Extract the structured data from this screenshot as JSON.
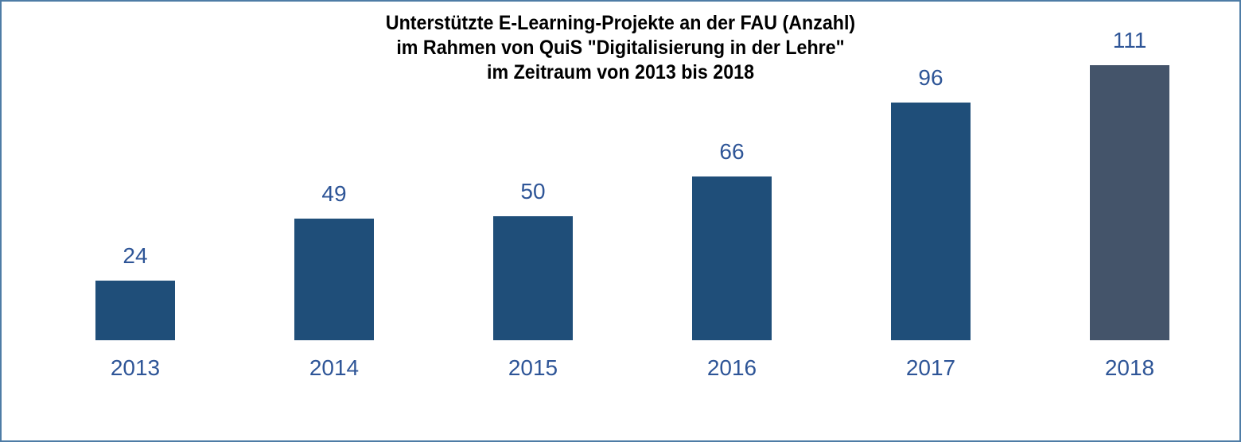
{
  "frame": {
    "border_color": "#4E7CA6",
    "background_color": "#FFFFFF"
  },
  "chart_data": {
    "type": "bar",
    "title": "Unterstützte E-Learning-Projekte an der FAU (Anzahl) im Rahmen von QuiS \"Digitalisierung in der Lehre\" im Zeitraum von 2013 bis 2018",
    "title_lines": [
      "Unterstützte E-Learning-Projekte an der FAU (Anzahl)",
      "im Rahmen von QuiS \"Digitalisierung in der Lehre\"",
      "im Zeitraum von 2013 bis 2018"
    ],
    "categories": [
      "2013",
      "2014",
      "2015",
      "2016",
      "2017",
      "2018"
    ],
    "values": [
      24,
      49,
      50,
      66,
      96,
      111
    ],
    "data_labels_shown": true,
    "bar_colors": [
      "#1F4E79",
      "#1F4E79",
      "#1F4E79",
      "#1F4E79",
      "#1F4E79",
      "#44546A"
    ],
    "label_color": "#2E5597",
    "title_color": "#000000",
    "xlabel": "",
    "ylabel": "",
    "ylim": [
      0,
      120
    ],
    "grid": false,
    "legend": false,
    "axis_lines": false
  }
}
